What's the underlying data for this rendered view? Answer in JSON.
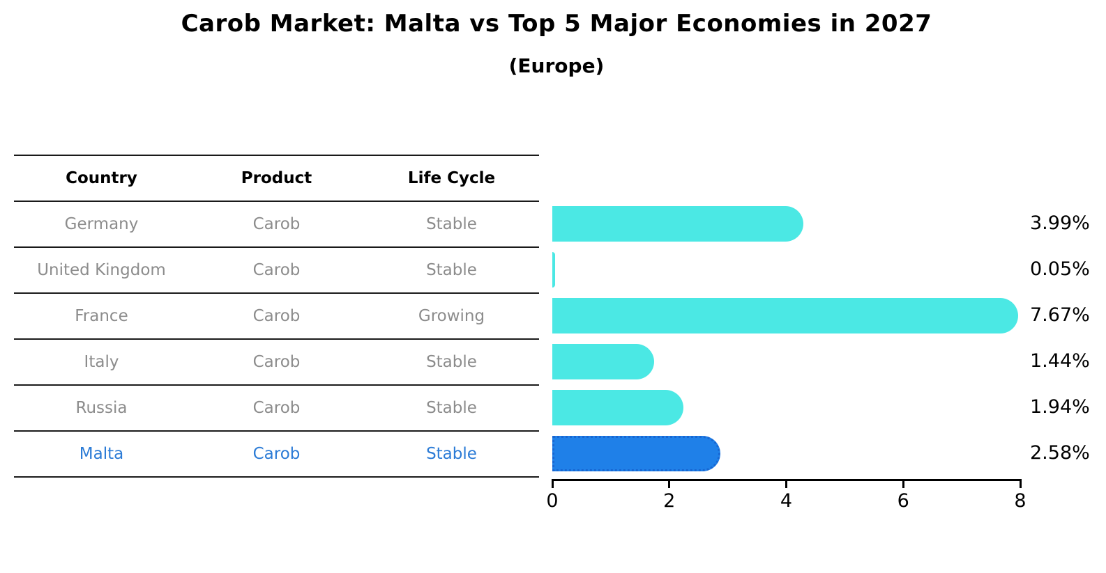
{
  "title": "Carob Market: Malta vs Top 5 Major Economies in 2027",
  "subtitle": "(Europe)",
  "table": {
    "headers": [
      "Country",
      "Product",
      "Life Cycle"
    ],
    "rows": [
      {
        "cells": [
          "Germany",
          "Carob",
          "Stable"
        ],
        "highlight": false
      },
      {
        "cells": [
          "United Kingdom",
          "Carob",
          "Stable"
        ],
        "highlight": false
      },
      {
        "cells": [
          "France",
          "Carob",
          "Growing"
        ],
        "highlight": false
      },
      {
        "cells": [
          "Italy",
          "Carob",
          "Stable"
        ],
        "highlight": false
      },
      {
        "cells": [
          "Russia",
          "Carob",
          "Stable"
        ],
        "highlight": false
      },
      {
        "cells": [
          "Malta",
          "Carob",
          "Stable"
        ],
        "highlight": true
      }
    ]
  },
  "chart_data": {
    "type": "bar",
    "orientation": "horizontal",
    "title": "Carob Market: Malta vs Top 5 Major Economies in 2027 (Europe)",
    "categories": [
      "Germany",
      "United Kingdom",
      "France",
      "Italy",
      "Russia",
      "Malta"
    ],
    "values": [
      3.99,
      0.05,
      7.67,
      1.44,
      1.94,
      2.58
    ],
    "value_labels": [
      "3.99%",
      "0.05%",
      "7.67%",
      "1.44%",
      "1.94%",
      "2.58%"
    ],
    "highlight_index": 5,
    "xlim": [
      0,
      8
    ],
    "x_ticks": [
      0,
      2,
      4,
      6,
      8
    ],
    "grid": false,
    "legend": false,
    "bar_color": "#4BE8E4",
    "highlight_bar_color": "#1F80E8",
    "highlight_bar_border_color": "#1766D2"
  },
  "colors": {
    "text_primary": "#000000",
    "table_text_muted": "#8C8C8C",
    "highlight_text": "#2B7BD6",
    "table_line": "#1A1A1A",
    "axis": "#000000"
  }
}
